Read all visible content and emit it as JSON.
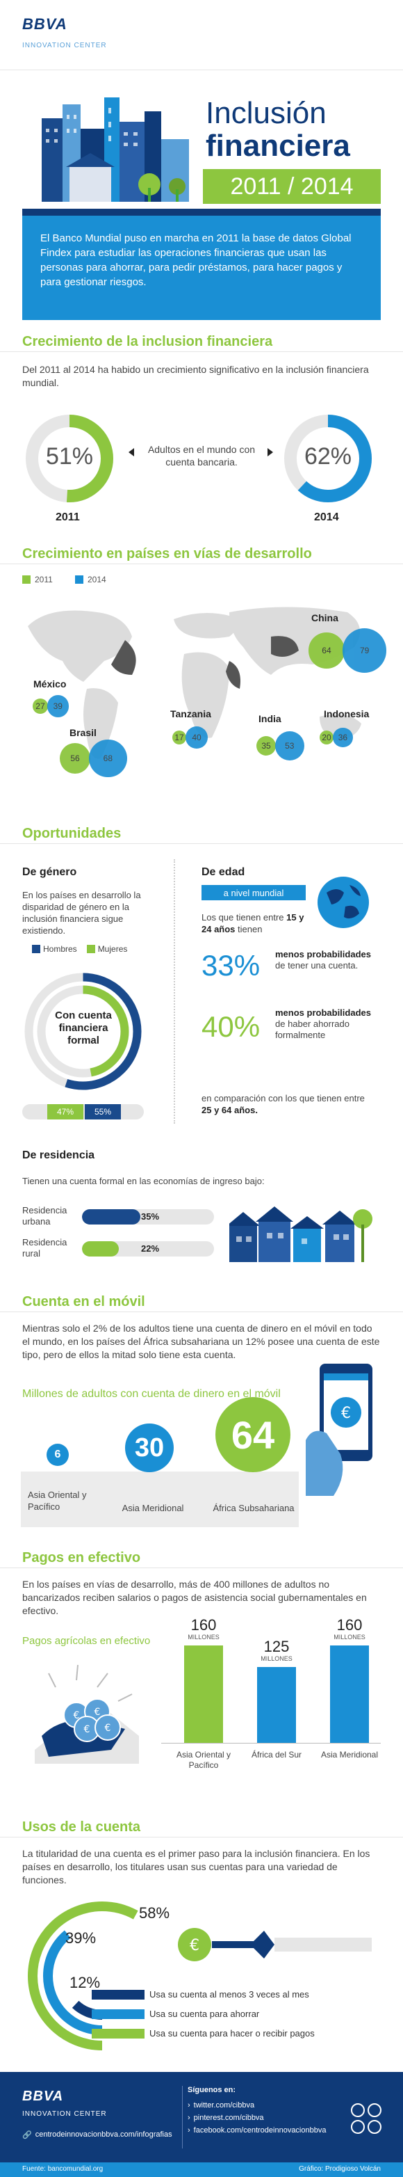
{
  "brand": {
    "logo": "BBVA",
    "subtitle": "INNOVATION CENTER"
  },
  "hero": {
    "title1": "Inclusión",
    "title2": "financiera",
    "years": "2011 / 2014",
    "intro": "El Banco Mundial puso en marcha en 2011 la base de datos Global Findex para estudiar las operaciones financieras que usan las personas para ahorrar, para pedir préstamos, para hacer pagos y para gestionar riesgos."
  },
  "growth": {
    "title": "Crecimiento de la inclusion financiera",
    "text": "Del 2011 al 2014 ha habido un crecimiento significativo en la inclusión financiera mundial.",
    "pct2011": "51%",
    "pct2014": "62%",
    "middle": "Adultos en el mundo con cuenta bancaria.",
    "year2011": "2011",
    "year2014": "2014",
    "values": [
      51,
      62
    ]
  },
  "developing": {
    "title": "Crecimiento en países en vías de desarrollo",
    "legend": [
      "2011",
      "2014"
    ],
    "regions": [
      {
        "name": "China",
        "v2011": "64",
        "v2014": "79"
      },
      {
        "name": "México",
        "v2011": "27",
        "v2014": "39"
      },
      {
        "name": "Brasil",
        "v2011": "56",
        "v2014": "68"
      },
      {
        "name": "Tanzania",
        "v2011": "17",
        "v2014": "40"
      },
      {
        "name": "India",
        "v2011": "35",
        "v2014": "53"
      },
      {
        "name": "Indonesia",
        "v2011": "20",
        "v2014": "36"
      }
    ]
  },
  "opportunities": {
    "title": "Oportunidades",
    "gender": {
      "title": "De género",
      "text": "En los países en desarrollo la disparidad de género en la inclusión financiera sigue existiendo.",
      "legend_men": "Hombres",
      "legend_women": "Mujeres",
      "center": "Con cuenta financiera formal",
      "women_pct": "47%",
      "men_pct": "55%",
      "values": [
        47,
        55
      ]
    },
    "age": {
      "title": "De edad",
      "badge": "a nivel mundial",
      "intro_a": "Los que tienen entre",
      "intro_b": "15 y 24 años",
      "intro_c": "tienen",
      "stat1": "33%",
      "stat1_bold": "menos probabilidades",
      "stat1_rest": "de tener una cuenta.",
      "stat2": "40%",
      "stat2_bold": "menos probabilidades",
      "stat2_rest": "de haber ahorrado formalmente",
      "outro_a": "en comparación con los que tienen entre",
      "outro_b": "25 y 64 años."
    },
    "residence": {
      "title": "De residencia",
      "text": "Tienen una cuenta formal en las economías de ingreso bajo:",
      "urban_label": "Residencia urbana",
      "urban_pct": "35%",
      "rural_label": "Residencia rural",
      "rural_pct": "22%",
      "values": [
        35,
        22
      ]
    }
  },
  "mobile": {
    "title": "Cuenta en el móvil",
    "text": "Mientras solo el 2% de los adultos tiene una cuenta de dinero en el móvil en todo el mundo, en los países del África subsahariana un 12% posee una cuenta de este tipo,  pero de ellos la mitad solo tiene esta cuenta.",
    "subtitle": "Millones de adultos con cuenta de dinero en el móvil",
    "items": [
      {
        "value": "6",
        "label": "Asia Oriental y Pacífico"
      },
      {
        "value": "30",
        "label": "Asia Meridional"
      },
      {
        "value": "64",
        "label": "África Subsahariana"
      }
    ]
  },
  "cash": {
    "title": "Pagos en efectivo",
    "text": "En los países en vías de desarrollo, más de 400 millones de adultos no bancarizados reciben salarios o pagos de asistencia social gubernamentales en efectivo.",
    "subtitle": "Pagos agrícolas en efectivo",
    "bars": [
      {
        "value": "160",
        "unit": "MILLONES",
        "label": "Asia Oriental y Pacífico"
      },
      {
        "value": "125",
        "unit": "MILLONES",
        "label": "África del Sur"
      },
      {
        "value": "160",
        "unit": "MILLONES",
        "label": "Asia Meridional"
      }
    ]
  },
  "usage": {
    "title": "Usos de la cuenta",
    "text": "La titularidad de una cuenta es el primer paso para la inclusión financiera. En los países en desarrollo, los titulares usan sus cuentas para una variedad de funciones.",
    "pcts": [
      "58%",
      "39%",
      "12%"
    ],
    "labels": [
      "Usa su cuenta al menos 3 veces al mes",
      "Usa su cuenta para ahorrar",
      "Usa su cuenta para hacer o recibir pagos"
    ],
    "values": [
      58,
      39,
      12
    ]
  },
  "footer": {
    "logo": "BBVA",
    "subtitle": "INNOVATION CENTER",
    "site": "centrodeinnovacionbbva.com/infografias",
    "follow": "Síguenos en:",
    "links": [
      "twitter.com/cibbva",
      "pinterest.com/cibbva",
      "facebook.com/centrodeinnovacionbbva"
    ],
    "source": "Fuente: bancomundial.org",
    "credit": "Gráfico: Prodigioso Volcán"
  }
}
